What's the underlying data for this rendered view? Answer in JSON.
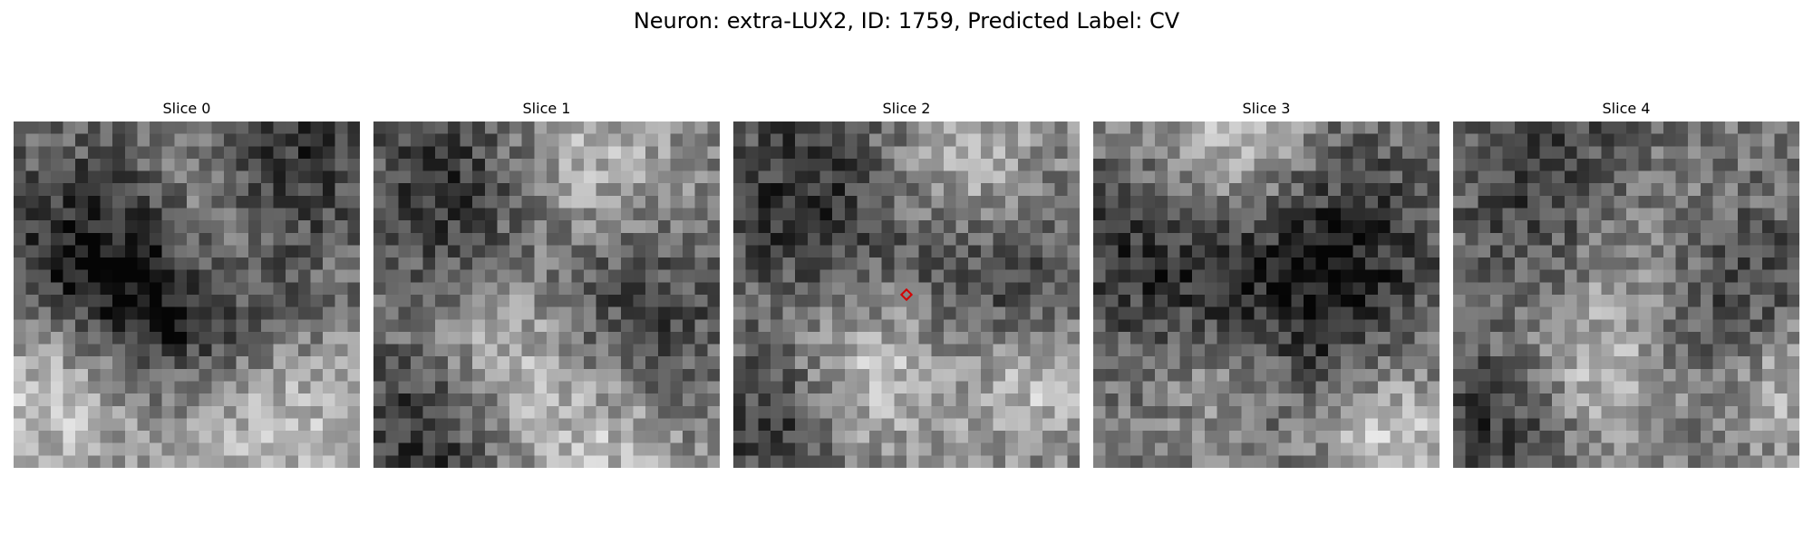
{
  "figure": {
    "title": "Neuron: extra-LUX2, ID: 1759, Predicted Label: CV"
  },
  "slices": [
    {
      "label": "Slice 0",
      "seed": 11,
      "has_marker": false
    },
    {
      "label": "Slice 1",
      "seed": 23,
      "has_marker": false
    },
    {
      "label": "Slice 2",
      "seed": 37,
      "has_marker": true
    },
    {
      "label": "Slice 3",
      "seed": 41,
      "has_marker": false
    },
    {
      "label": "Slice 4",
      "seed": 53,
      "has_marker": false
    }
  ],
  "image": {
    "grid_cells": 28,
    "colormap": "gray"
  },
  "marker": {
    "color": "#d40000",
    "shape": "diamond"
  }
}
